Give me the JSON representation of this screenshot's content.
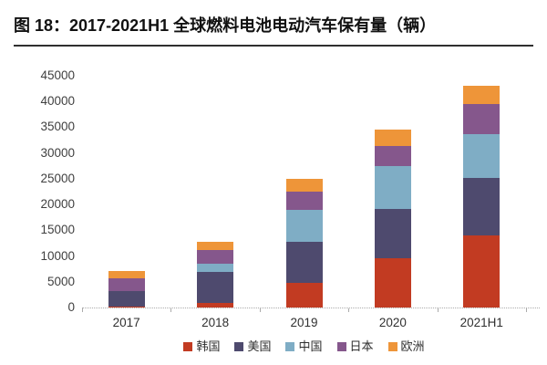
{
  "figure": {
    "title": "图 18：2017-2021H1 全球燃料电池电动汽车保有量（辆）",
    "title_color": "#111111",
    "rule_color": "#2f2f2f"
  },
  "chart_data": {
    "type": "bar",
    "stacked": true,
    "title": "2017-2021H1 全球燃料电池电动汽车保有量（辆）",
    "xlabel": "",
    "ylabel": "",
    "categories": [
      "2017",
      "2018",
      "2019",
      "2020",
      "2021H1"
    ],
    "series": [
      {
        "id": "korea",
        "name": "韩国",
        "color": "#c23b22",
        "values": [
          100,
          900,
          4700,
          9600,
          14000
        ]
      },
      {
        "id": "usa",
        "name": "美国",
        "color": "#4e4a6e",
        "values": [
          3100,
          6000,
          8100,
          9500,
          11200
        ]
      },
      {
        "id": "china",
        "name": "中国",
        "color": "#7fadc5",
        "values": [
          0,
          1600,
          6200,
          8400,
          8400
        ]
      },
      {
        "id": "japan",
        "name": "日本",
        "color": "#85578c",
        "values": [
          2400,
          2700,
          3500,
          3900,
          5900
        ]
      },
      {
        "id": "europe",
        "name": "欧洲",
        "color": "#ee9539",
        "values": [
          1500,
          1600,
          2500,
          3100,
          3500
        ]
      }
    ],
    "totals": [
      7100,
      12800,
      25000,
      34500,
      43000
    ],
    "ylim": [
      0,
      45000
    ],
    "yticks": [
      0,
      5000,
      10000,
      15000,
      20000,
      25000,
      30000,
      35000,
      40000,
      45000
    ],
    "grid": false,
    "legend_position": "bottom",
    "axis_text_color": "#3f3f3f",
    "axis_line_color": "#ababab"
  }
}
